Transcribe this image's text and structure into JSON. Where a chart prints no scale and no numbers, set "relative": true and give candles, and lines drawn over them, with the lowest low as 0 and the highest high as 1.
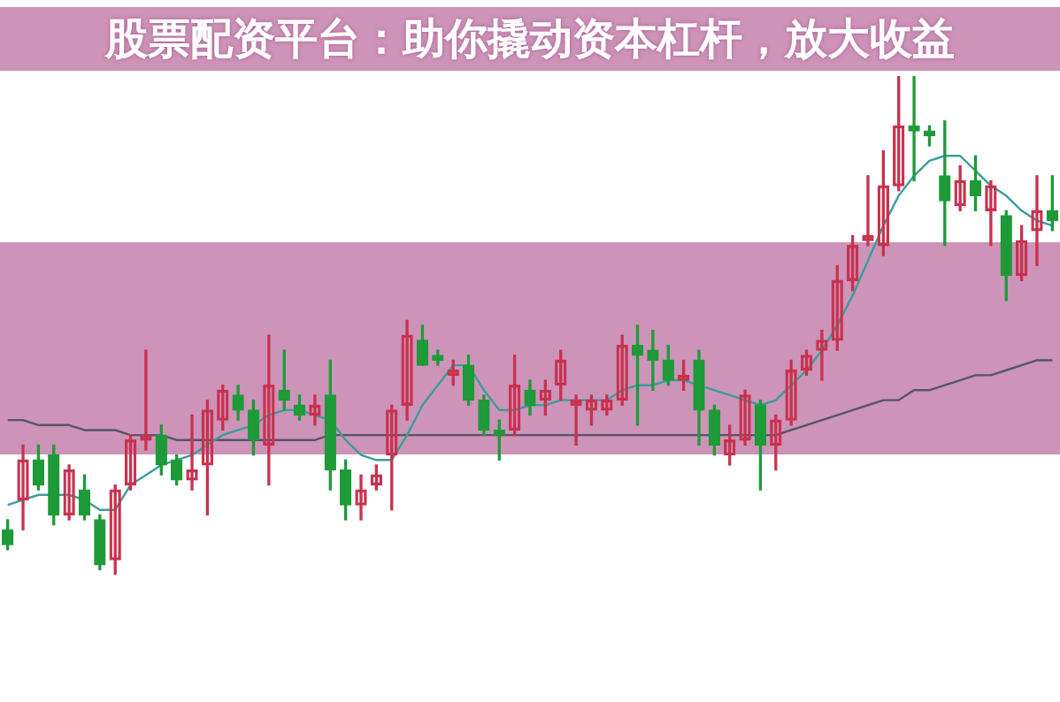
{
  "chart_data": {
    "type": "candlestick",
    "title": "股票配资平台：助你撬动资本杠杆，放大收益",
    "relative": true,
    "categories": [
      null,
      null,
      null,
      null,
      null,
      null,
      null,
      null,
      null,
      null,
      null,
      null,
      null,
      null,
      null,
      null,
      null,
      null,
      null,
      null,
      null,
      null,
      null,
      null,
      null,
      null,
      null,
      null,
      null,
      null,
      null,
      null,
      null,
      null,
      null,
      null,
      null,
      null,
      null,
      null,
      null,
      null,
      null,
      null,
      null,
      null,
      null,
      null,
      null,
      null,
      null,
      null,
      null,
      null,
      null,
      null,
      null,
      null,
      null,
      null,
      null,
      null,
      null,
      null,
      null,
      null,
      null,
      null,
      null
    ],
    "ohlc": [
      [
        0.09,
        0.11,
        0.05,
        0.06
      ],
      [
        0.15,
        0.26,
        0.09,
        0.23
      ],
      [
        0.23,
        0.26,
        0.17,
        0.18
      ],
      [
        0.24,
        0.26,
        0.1,
        0.12
      ],
      [
        0.12,
        0.22,
        0.11,
        0.21
      ],
      [
        0.17,
        0.2,
        0.11,
        0.12
      ],
      [
        0.11,
        0.12,
        0.01,
        0.02
      ],
      [
        0.03,
        0.18,
        0,
        0.17
      ],
      [
        0.18,
        0.28,
        0.17,
        0.27
      ],
      [
        0.27,
        0.45,
        0.25,
        0.28
      ],
      [
        0.28,
        0.3,
        0.2,
        0.22
      ],
      [
        0.23,
        0.24,
        0.18,
        0.19
      ],
      [
        0.19,
        0.32,
        0.17,
        0.21
      ],
      [
        0.22,
        0.35,
        0.12,
        0.33
      ],
      [
        0.31,
        0.38,
        0.29,
        0.37
      ],
      [
        0.36,
        0.38,
        0.31,
        0.33
      ],
      [
        0.33,
        0.35,
        0.24,
        0.27
      ],
      [
        0.26,
        0.48,
        0.18,
        0.38
      ],
      [
        0.37,
        0.45,
        0.33,
        0.35
      ],
      [
        0.34,
        0.36,
        0.31,
        0.32
      ],
      [
        0.32,
        0.36,
        0.3,
        0.34
      ],
      [
        0.36,
        0.43,
        0.17,
        0.21
      ],
      [
        0.21,
        0.23,
        0.11,
        0.14
      ],
      [
        0.14,
        0.2,
        0.11,
        0.17
      ],
      [
        0.18,
        0.22,
        0.17,
        0.2
      ],
      [
        0.24,
        0.34,
        0.13,
        0.33
      ],
      [
        0.34,
        0.51,
        0.31,
        0.48
      ],
      [
        0.47,
        0.5,
        0.42,
        0.42
      ],
      [
        0.44,
        0.45,
        0.42,
        0.43
      ],
      [
        0.4,
        0.43,
        0.38,
        0.41
      ],
      [
        0.42,
        0.44,
        0.34,
        0.35
      ],
      [
        0.35,
        0.36,
        0.28,
        0.29
      ],
      [
        0.29,
        0.31,
        0.23,
        0.28
      ],
      [
        0.29,
        0.44,
        0.28,
        0.38
      ],
      [
        0.37,
        0.39,
        0.32,
        0.34
      ],
      [
        0.35,
        0.39,
        0.32,
        0.37
      ],
      [
        0.38,
        0.45,
        0.35,
        0.43
      ],
      [
        0.34,
        0.36,
        0.26,
        0.35
      ],
      [
        0.33,
        0.36,
        0.3,
        0.35
      ],
      [
        0.33,
        0.36,
        0.32,
        0.35
      ],
      [
        0.35,
        0.48,
        0.34,
        0.46
      ],
      [
        0.46,
        0.5,
        0.3,
        0.44
      ],
      [
        0.45,
        0.49,
        0.37,
        0.43
      ],
      [
        0.43,
        0.46,
        0.38,
        0.39
      ],
      [
        0.39,
        0.43,
        0.37,
        0.4
      ],
      [
        0.43,
        0.45,
        0.26,
        0.33
      ],
      [
        0.33,
        0.34,
        0.24,
        0.26
      ],
      [
        0.24,
        0.3,
        0.22,
        0.27
      ],
      [
        0.27,
        0.37,
        0.26,
        0.36
      ],
      [
        0.34,
        0.35,
        0.17,
        0.26
      ],
      [
        0.26,
        0.32,
        0.21,
        0.31
      ],
      [
        0.31,
        0.43,
        0.3,
        0.41
      ],
      [
        0.41,
        0.45,
        0.4,
        0.44
      ],
      [
        0.45,
        0.49,
        0.39,
        0.47
      ],
      [
        0.47,
        0.62,
        0.45,
        0.59
      ],
      [
        0.59,
        0.68,
        0.57,
        0.66
      ],
      [
        0.67,
        0.8,
        0.66,
        0.68
      ],
      [
        0.66,
        0.85,
        0.64,
        0.78
      ],
      [
        0.78,
        1,
        0.77,
        0.9
      ],
      [
        0.9,
        1,
        0.79,
        0.89
      ],
      [
        0.89,
        0.9,
        0.86,
        0.88
      ],
      [
        0.8,
        0.91,
        0.66,
        0.75
      ],
      [
        0.74,
        0.82,
        0.73,
        0.79
      ],
      [
        0.79,
        0.84,
        0.73,
        0.76
      ],
      [
        0.73,
        0.79,
        0.66,
        0.78
      ],
      [
        0.72,
        0.73,
        0.55,
        0.6
      ],
      [
        0.6,
        0.7,
        0.59,
        0.67
      ],
      [
        0.69,
        0.8,
        0.62,
        0.73
      ],
      [
        0.73,
        0.8,
        0.69,
        0.71
      ]
    ],
    "colors": [
      "#1e9a38",
      "#c8324f",
      "#1e9a38",
      "#1e9a38",
      "#c8324f",
      "#1e9a38",
      "#1e9a38",
      "#c8324f",
      "#c8324f",
      "#c8324f",
      "#1e9a38",
      "#1e9a38",
      "#c8324f",
      "#c8324f",
      "#c8324f",
      "#1e9a38",
      "#1e9a38",
      "#c8324f",
      "#1e9a38",
      "#1e9a38",
      "#c8324f",
      "#1e9a38",
      "#1e9a38",
      "#c8324f",
      "#c8324f",
      "#c8324f",
      "#c8324f",
      "#1e9a38",
      "#1e9a38",
      "#c8324f",
      "#1e9a38",
      "#1e9a38",
      "#1e9a38",
      "#c8324f",
      "#1e9a38",
      "#c8324f",
      "#c8324f",
      "#c8324f",
      "#c8324f",
      "#c8324f",
      "#c8324f",
      "#1e9a38",
      "#1e9a38",
      "#1e9a38",
      "#c8324f",
      "#1e9a38",
      "#1e9a38",
      "#c8324f",
      "#c8324f",
      "#1e9a38",
      "#c8324f",
      "#c8324f",
      "#c8324f",
      "#c8324f",
      "#c8324f",
      "#c8324f",
      "#c8324f",
      "#c8324f",
      "#c8324f",
      "#1e9a38",
      "#1e9a38",
      "#1e9a38",
      "#c8324f",
      "#1e9a38",
      "#c8324f",
      "#1e9a38",
      "#c8324f",
      "#c8324f",
      "#1e9a38"
    ],
    "series": [
      {
        "type": "line",
        "color": "#3a9e9a",
        "values": [
          0.14,
          0.15,
          0.16,
          0.16,
          0.16,
          0.15,
          0.13,
          0.13,
          0.18,
          0.2,
          0.22,
          0.23,
          0.24,
          0.26,
          0.28,
          0.29,
          0.3,
          0.32,
          0.33,
          0.33,
          0.32,
          0.31,
          0.27,
          0.24,
          0.23,
          0.23,
          0.28,
          0.34,
          0.38,
          0.42,
          0.42,
          0.37,
          0.33,
          0.33,
          0.34,
          0.34,
          0.35,
          0.35,
          0.35,
          0.35,
          0.37,
          0.38,
          0.38,
          0.39,
          0.39,
          0.38,
          0.37,
          0.36,
          0.35,
          0.34,
          0.35,
          0.38,
          0.41,
          0.45,
          0.5,
          0.56,
          0.63,
          0.7,
          0.76,
          0.8,
          0.83,
          0.84,
          0.84,
          0.81,
          0.78,
          0.76,
          0.73,
          0.71,
          0.7
        ]
      },
      {
        "type": "line",
        "color": "#555566",
        "values": [
          0.31,
          0.31,
          0.3,
          0.3,
          0.3,
          0.29,
          0.29,
          0.29,
          0.28,
          0.28,
          0.28,
          0.27,
          0.27,
          0.27,
          0.27,
          0.27,
          0.27,
          0.27,
          0.27,
          0.27,
          0.27,
          0.28,
          0.28,
          0.28,
          0.28,
          0.28,
          0.28,
          0.28,
          0.28,
          0.28,
          0.28,
          0.28,
          0.28,
          0.28,
          0.28,
          0.28,
          0.28,
          0.28,
          0.28,
          0.28,
          0.28,
          0.28,
          0.28,
          0.28,
          0.28,
          0.28,
          0.28,
          0.28,
          0.28,
          0.28,
          0.28,
          0.29,
          0.3,
          0.31,
          0.32,
          0.33,
          0.34,
          0.35,
          0.35,
          0.37,
          0.37,
          0.38,
          0.39,
          0.4,
          0.4,
          0.41,
          0.42,
          0.43,
          0.43
        ]
      }
    ],
    "legend": false
  }
}
